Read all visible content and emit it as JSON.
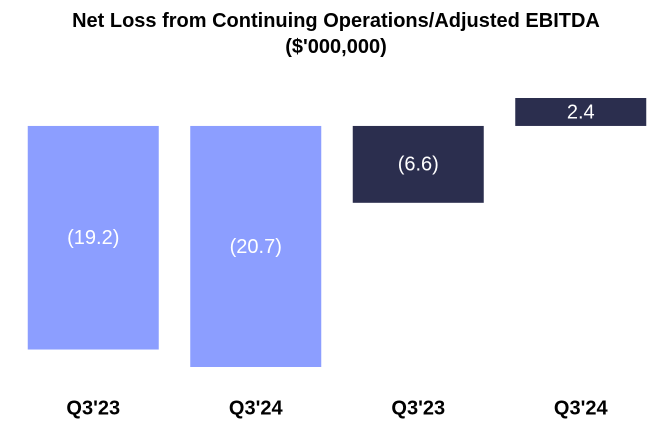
{
  "chart_data": {
    "type": "bar",
    "title": "Net Loss from Continuing Operations/Adjusted EBITDA ($'000,000)",
    "categories": [
      "Q3'23",
      "Q3'24",
      "Q3'23",
      "Q3'24"
    ],
    "values": [
      -19.2,
      -20.7,
      -6.6,
      2.4
    ],
    "value_labels": [
      "(19.2)",
      "(20.7)",
      "(6.6)",
      "2.4"
    ],
    "colors": [
      "#8c9eff",
      "#8c9eff",
      "#2b2e4e",
      "#2b2e4e"
    ]
  }
}
